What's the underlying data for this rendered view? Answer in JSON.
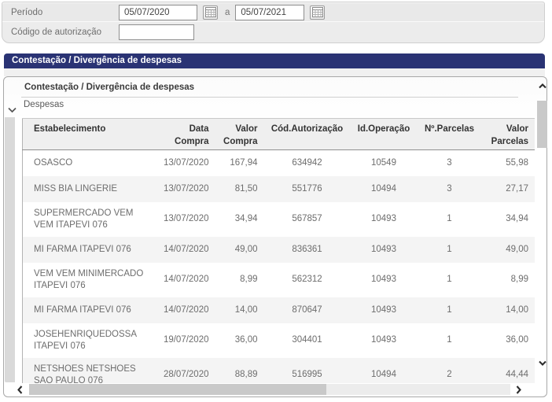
{
  "filters": {
    "period_label": "Período",
    "date_from": "05/07/2020",
    "range_separator": "a",
    "date_to": "05/07/2021",
    "auth_code_label": "Código de autorização",
    "auth_code_value": ""
  },
  "title_bar": {
    "label": "Contestação / Divergência de despesas"
  },
  "panel": {
    "heading": "Contestação / Divergência de despesas",
    "section_label": "Despesas"
  },
  "table": {
    "columns": [
      {
        "label": "Estabelecimento",
        "align": "left"
      },
      {
        "label": "Data\nCompra",
        "align": "right"
      },
      {
        "label": "Valor\nCompra",
        "align": "right"
      },
      {
        "label": "Cód.Autorização",
        "align": "center"
      },
      {
        "label": "Id.Operação",
        "align": "center"
      },
      {
        "label": "Nº.Parcelas",
        "align": "center"
      },
      {
        "label": "Valor\nParcelas",
        "align": "right"
      }
    ],
    "rows": [
      [
        "OSASCO",
        "13/07/2020",
        "167,94",
        "634942",
        "10549",
        "3",
        "55,98"
      ],
      [
        "MISS BIA LINGERIE",
        "13/07/2020",
        "81,50",
        "551776",
        "10494",
        "3",
        "27,17"
      ],
      [
        "SUPERMERCADO VEM VEM ITAPEVI 076",
        "13/07/2020",
        "34,94",
        "567857",
        "10493",
        "1",
        "34,94"
      ],
      [
        "MI FARMA ITAPEVI 076",
        "14/07/2020",
        "49,00",
        "836361",
        "10493",
        "1",
        "49,00"
      ],
      [
        "VEM VEM MINIMERCADO ITAPEVI 076",
        "14/07/2020",
        "8,99",
        "562312",
        "10493",
        "1",
        "8,99"
      ],
      [
        "MI FARMA ITAPEVI 076",
        "14/07/2020",
        "14,00",
        "870647",
        "10493",
        "1",
        "14,00"
      ],
      [
        "JOSEHENRIQUEDOSSA ITAPEVI 076",
        "19/07/2020",
        "36,00",
        "304401",
        "10493",
        "1",
        "36,00"
      ],
      [
        "NETSHOES NETSHOES SAO PAULO 076",
        "28/07/2020",
        "88,89",
        "516995",
        "10494",
        "2",
        "44,44"
      ]
    ]
  },
  "colors": {
    "title_bar_bg": "#2a3374",
    "panel_border": "#a8a8a8",
    "table_header_bg": "#efefef",
    "row_alt_bg": "#f4f4f4",
    "text_muted": "#6d6d6d"
  }
}
